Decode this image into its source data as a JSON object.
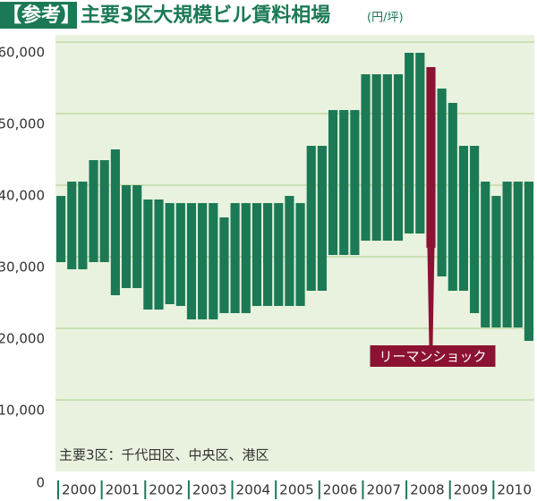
{
  "chart_data": {
    "type": "range-bar",
    "title_tag": "【参考】",
    "title": "主要3区大規模ビル賃料相場",
    "unit": "(円/坪)",
    "note": "主要3区：千代田区、中央区、港区",
    "color": "#1b7a55",
    "years": [
      "2000",
      "2001",
      "2002",
      "2003",
      "2004",
      "2005",
      "2006",
      "2007",
      "2008",
      "2009",
      "2010"
    ],
    "high": [
      38500,
      40500,
      40500,
      43500,
      43500,
      45000,
      40000,
      40000,
      38000,
      38000,
      37500,
      37500,
      37500,
      37500,
      37500,
      35500,
      37500,
      37500,
      37500,
      37500,
      37500,
      38500,
      37500,
      45500,
      45500,
      50500,
      50500,
      50500,
      55500,
      55500,
      55500,
      55500,
      58500,
      58500,
      56500,
      53500,
      51500,
      45500,
      45500,
      40500,
      38500,
      40500,
      40500,
      40500
    ],
    "low": [
      29250,
      28250,
      28250,
      29250,
      29250,
      24625,
      25625,
      25625,
      22625,
      22625,
      23375,
      23125,
      21250,
      21250,
      21250,
      22125,
      22125,
      22125,
      23125,
      23125,
      23125,
      23125,
      23125,
      25250,
      25250,
      30250,
      30250,
      30250,
      32250,
      32250,
      32250,
      32250,
      33250,
      33250,
      31250,
      27250,
      25250,
      25250,
      22125,
      20125,
      20125,
      20125,
      20125,
      18250
    ],
    "annotation": {
      "text": "リーマンショック",
      "color": "#8c1233",
      "bar": 34
    },
    "ylim": [
      0,
      61000
    ],
    "yticks": [
      0,
      {
        "value": 10000,
        "label": "10,000"
      },
      {
        "value": 20000,
        "label": "20,000"
      },
      {
        "value": 30000,
        "label": "30,000"
      },
      {
        "value": 40000,
        "label": "40,000"
      },
      {
        "value": 50000,
        "label": "50,000"
      },
      {
        "value": 60000,
        "label": "60,000"
      }
    ],
    "grid": true
  }
}
